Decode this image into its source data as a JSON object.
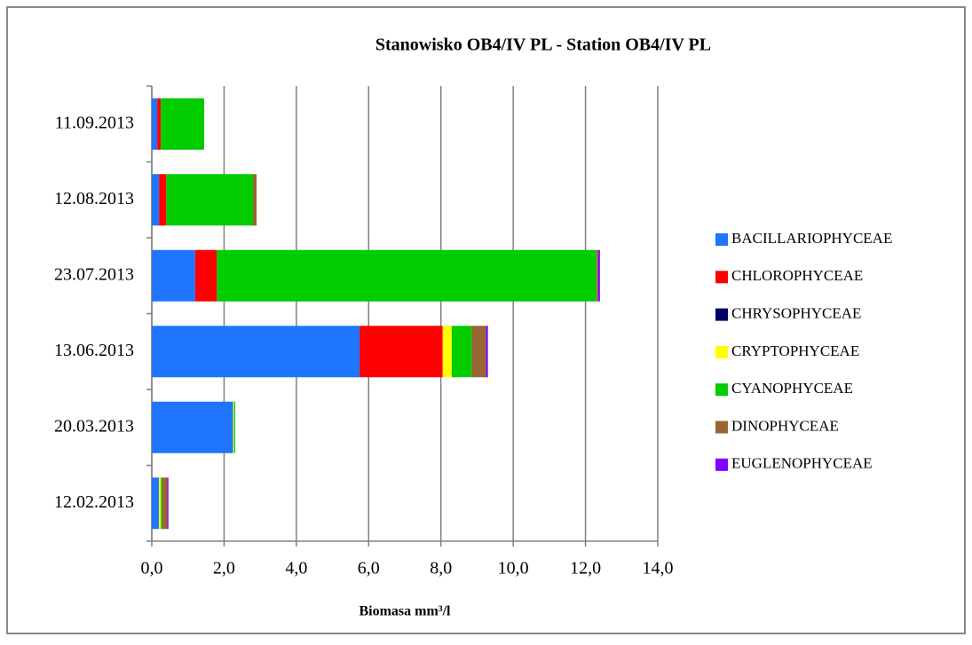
{
  "chart_data": {
    "type": "stacked-barh",
    "title": "Stanowisko OB4/IV PL - Station OB4/IV PL",
    "xlabel": "Biomasa mm³/l",
    "categories": [
      "11.09.2013",
      "12.08.2013",
      "23.07.2013",
      "13.06.2013",
      "20.03.2013",
      "12.02.2013"
    ],
    "series": [
      {
        "name": "BACILLARIOPHYCEAE",
        "color": "#1f75fe",
        "values": [
          0.15,
          0.2,
          1.2,
          5.75,
          2.25,
          0.2
        ]
      },
      {
        "name": "CHLOROPHYCEAE",
        "color": "#ff0000",
        "values": [
          0.1,
          0.2,
          0.6,
          2.3,
          0,
          0
        ]
      },
      {
        "name": "CHRYSOPHYCEAE",
        "color": "#000066",
        "values": [
          0,
          0,
          0,
          0,
          0,
          0
        ]
      },
      {
        "name": "CRYPTOPHYCEAE",
        "color": "#ffff00",
        "values": [
          0,
          0,
          0,
          0.25,
          0.03,
          0.05
        ]
      },
      {
        "name": "CYANOPHYCEAE",
        "color": "#00cc00",
        "values": [
          1.2,
          2.4,
          10.5,
          0.55,
          0.03,
          0.03
        ]
      },
      {
        "name": "DINOPHYCEAE",
        "color": "#996633",
        "values": [
          0,
          0.1,
          0.05,
          0.4,
          0,
          0.15
        ]
      },
      {
        "name": "EUGLENOPHYCEAE",
        "color": "#7f00ff",
        "values": [
          0,
          0,
          0.05,
          0.05,
          0,
          0.03
        ]
      }
    ],
    "xlim": [
      0,
      14
    ],
    "xticks": [
      {
        "value": 0,
        "label": "0,0"
      },
      {
        "value": 2,
        "label": "2,0"
      },
      {
        "value": 4,
        "label": "4,0"
      },
      {
        "value": 6,
        "label": "6,0"
      },
      {
        "value": 8,
        "label": "8,0"
      },
      {
        "value": 10,
        "label": "10,0"
      },
      {
        "value": 12,
        "label": "12,0"
      },
      {
        "value": 14,
        "label": "14,0"
      }
    ],
    "grid": true,
    "legend": "right"
  }
}
